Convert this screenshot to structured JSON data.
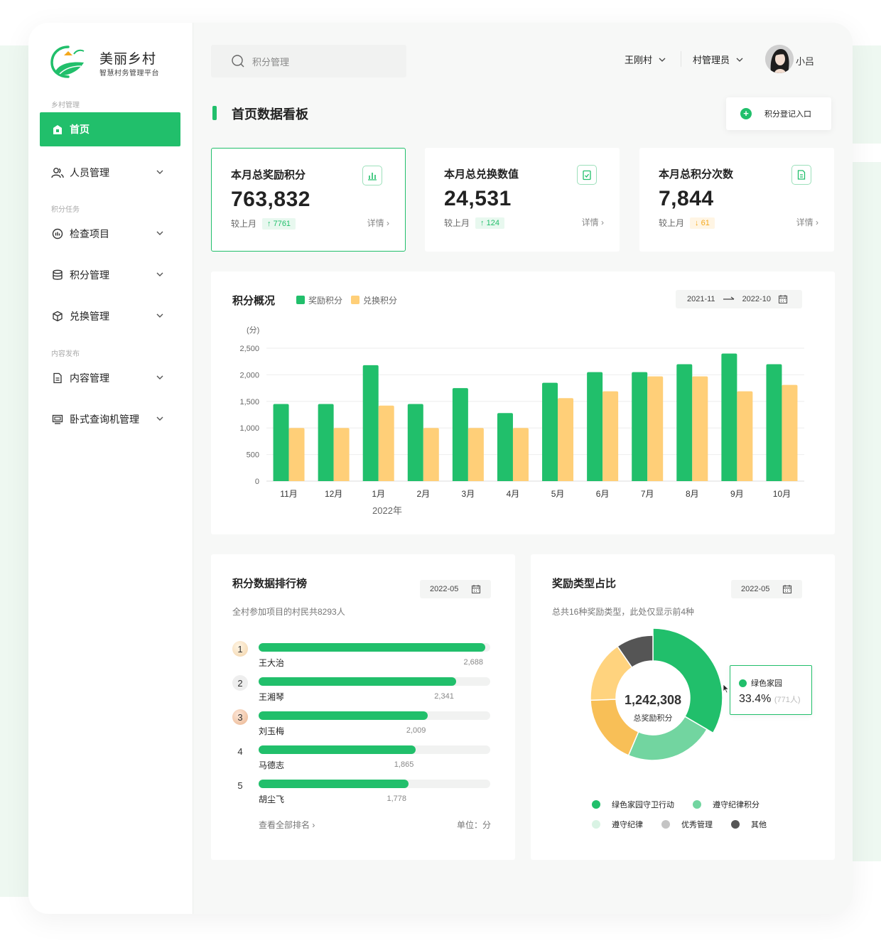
{
  "brand": {
    "title": "美丽乡村",
    "subtitle": "智慧村务管理平台"
  },
  "sidebar": {
    "sections": {
      "village": "乡村管理",
      "tasks": "积分任务",
      "content": "内容发布"
    },
    "items": [
      {
        "label": "首页",
        "icon": "home-icon",
        "active": true
      },
      {
        "label": "人员管理",
        "icon": "users-icon"
      },
      {
        "label": "检查项目",
        "icon": "inspection-icon"
      },
      {
        "label": "积分管理",
        "icon": "database-icon"
      },
      {
        "label": "兑换管理",
        "icon": "cube-icon"
      },
      {
        "label": "内容管理",
        "icon": "document-icon"
      },
      {
        "label": "卧式查询机管理",
        "icon": "monitor-icon"
      }
    ]
  },
  "header": {
    "search_placeholder": "积分管理",
    "village": "王刚村",
    "role": "村管理员",
    "user": "小吕"
  },
  "page": {
    "title": "首页数据看板",
    "register_button": "积分登记入口"
  },
  "stats": [
    {
      "title": "本月总奖励积分",
      "value": "763,832",
      "compare_label": "较上月",
      "delta": "7761",
      "direction": "up",
      "detail": "详情",
      "icon": "bar-chart-icon",
      "selected": true
    },
    {
      "title": "本月总兑换数值",
      "value": "24,531",
      "compare_label": "较上月",
      "delta": "124",
      "direction": "up",
      "detail": "详情",
      "icon": "clipboard-check-icon"
    },
    {
      "title": "本月总积分次数",
      "value": "7,844",
      "compare_label": "较上月",
      "delta": "61",
      "direction": "down",
      "detail": "详情",
      "icon": "document-icon"
    }
  ],
  "overview": {
    "title": "积分概况",
    "range_start": "2021-11",
    "range_end": "2022-10",
    "colors": {
      "reward": "#21bf6b",
      "exchange": "#ffcf78"
    }
  },
  "chart_data": {
    "type": "bar",
    "title": "积分概况",
    "ylabel": "(分)",
    "xlabel": "2022年",
    "categories": [
      "11月",
      "12月",
      "1月",
      "2月",
      "3月",
      "4月",
      "5月",
      "6月",
      "7月",
      "8月",
      "9月",
      "10月"
    ],
    "series": [
      {
        "name": "奖励积分",
        "values": [
          1450,
          1450,
          2180,
          1450,
          1750,
          1280,
          1850,
          2050,
          2050,
          2200,
          2400,
          2200
        ]
      },
      {
        "name": "兑换积分",
        "values": [
          1000,
          1000,
          1420,
          1000,
          1000,
          1000,
          1560,
          1690,
          1970,
          1970,
          1690,
          1810
        ]
      }
    ],
    "yticks": [
      0,
      500,
      1000,
      1500,
      2000,
      2500
    ],
    "ylim": [
      0,
      2500
    ],
    "legend": "top-left",
    "grid": true
  },
  "ranking": {
    "title": "积分数据排行榜",
    "date": "2022-05",
    "description": "全村参加项目的村民共8293人",
    "max": 2688,
    "rows": [
      {
        "rank": "1",
        "name": "王大治",
        "value": "2,688",
        "score": 2688
      },
      {
        "rank": "2",
        "name": "王湘琴",
        "value": "2,341",
        "score": 2341
      },
      {
        "rank": "3",
        "name": "刘玉梅",
        "value": "2,009",
        "score": 2009
      },
      {
        "rank": "4",
        "name": "马德志",
        "value": "1,865",
        "score": 1865
      },
      {
        "rank": "5",
        "name": "胡尘飞",
        "value": "1,778",
        "score": 1778
      }
    ],
    "view_all": "查看全部排名",
    "unit": "单位：分"
  },
  "reward_types": {
    "title": "奖励类型占比",
    "date": "2022-05",
    "description": "总共16种奖励类型，此处仅显示前4种",
    "total": "1,242,308",
    "total_label": "总奖励积分",
    "tooltip": {
      "name": "绿色家园",
      "percent": "33.4%",
      "count": "(771人)"
    },
    "legend": [
      {
        "label": "绿色家园守卫行动",
        "color": "#21bf6b"
      },
      {
        "label": "遵守纪律积分",
        "color": "#72d5a0"
      },
      {
        "label": "遵守纪律",
        "color": "#d9f3e4"
      },
      {
        "label": "优秀管理",
        "color": "#c4c4c4"
      },
      {
        "label": "其他",
        "color": "#555555"
      }
    ],
    "segments": [
      {
        "label": "绿色家园守卫行动",
        "share": 33.4,
        "color": "#21bf6b"
      },
      {
        "label": "遵守纪律积分",
        "share": 23,
        "color": "#72d5a0"
      },
      {
        "label": "优秀管理",
        "share": 18,
        "color": "#f8bf57"
      },
      {
        "label": "遵守纪律",
        "share": 16,
        "color": "#ffd37e"
      },
      {
        "label": "其他",
        "share": 9.6,
        "color": "#555555"
      }
    ]
  }
}
